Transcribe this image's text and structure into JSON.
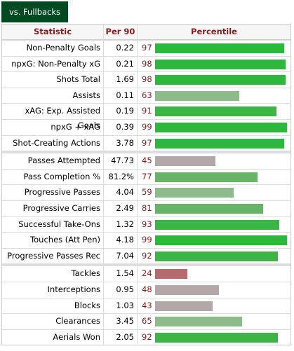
{
  "tab": "vs. Fullbacks",
  "table": {
    "headers": [
      "Statistic",
      "Per 90",
      "Percentile"
    ],
    "groups": [
      {
        "rows": [
          {
            "stat": "Non-Penalty Goals",
            "per90": "0.22",
            "percentile": 97,
            "color": "#2db83d"
          },
          {
            "stat": "npxG: Non-Penalty xG",
            "per90": "0.21",
            "percentile": 98,
            "color": "#2db83d"
          },
          {
            "stat": "Shots Total",
            "per90": "1.69",
            "percentile": 98,
            "color": "#2db83d"
          },
          {
            "stat": "Assists",
            "per90": "0.11",
            "percentile": 63,
            "color": "#8dbb8a"
          },
          {
            "stat": "xAG: Exp. Assisted Goals",
            "per90": "0.19",
            "percentile": 91,
            "color": "#3db446"
          },
          {
            "stat": "npxG + xAG",
            "per90": "0.39",
            "percentile": 99,
            "color": "#2db83d"
          },
          {
            "stat": "Shot-Creating Actions",
            "per90": "3.78",
            "percentile": 97,
            "color": "#2db83d"
          }
        ]
      },
      {
        "rows": [
          {
            "stat": "Passes Attempted",
            "per90": "47.73",
            "percentile": 45,
            "color": "#b3a7a8"
          },
          {
            "stat": "Pass Completion %",
            "per90": "81.2%",
            "percentile": 77,
            "color": "#66b566"
          },
          {
            "stat": "Progressive Passes",
            "per90": "4.04",
            "percentile": 59,
            "color": "#8dbb8a"
          },
          {
            "stat": "Progressive Carries",
            "per90": "2.49",
            "percentile": 81,
            "color": "#66b566"
          },
          {
            "stat": "Successful Take-Ons",
            "per90": "1.32",
            "percentile": 93,
            "color": "#3db446"
          },
          {
            "stat": "Touches (Att Pen)",
            "per90": "4.18",
            "percentile": 99,
            "color": "#2db83d"
          },
          {
            "stat": "Progressive Passes Rec",
            "per90": "7.04",
            "percentile": 92,
            "color": "#3db446"
          }
        ]
      },
      {
        "rows": [
          {
            "stat": "Tackles",
            "per90": "1.54",
            "percentile": 24,
            "color": "#b76a6d"
          },
          {
            "stat": "Interceptions",
            "per90": "0.95",
            "percentile": 48,
            "color": "#b3a7a8"
          },
          {
            "stat": "Blocks",
            "per90": "1.03",
            "percentile": 43,
            "color": "#b3a7a8"
          },
          {
            "stat": "Clearances",
            "per90": "3.45",
            "percentile": 65,
            "color": "#8dbb8a"
          },
          {
            "stat": "Aerials Won",
            "per90": "2.05",
            "percentile": 92,
            "color": "#3db446"
          }
        ]
      }
    ]
  }
}
